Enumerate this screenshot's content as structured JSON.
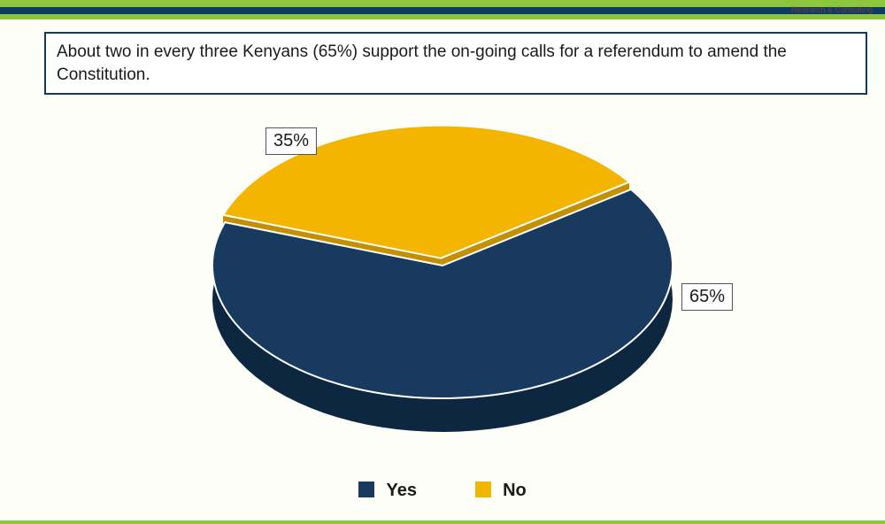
{
  "header": {
    "watermark": "Research & Consulting"
  },
  "title": "About two in every three Kenyans (65%) support the on-going calls for a referendum to amend the Constitution.",
  "chart": {
    "type": "pie",
    "is_3d": true,
    "exploded_slice_index": 1,
    "slices": [
      {
        "label": "Yes",
        "value": 65,
        "pct_text": "65%",
        "color": "#173a5e",
        "side_color": "#0e2740"
      },
      {
        "label": "No",
        "value": 35,
        "pct_text": "35%",
        "color": "#f4b500",
        "side_color": "#c48f00"
      }
    ],
    "background_color": "#fdfef8",
    "label_bg": "#ffffff",
    "label_border": "#555555",
    "label_fontsize": 20,
    "legend_fontsize": 20,
    "start_angle_deg": -35
  },
  "legend": {
    "items": [
      {
        "label": "Yes",
        "color": "#173a5e"
      },
      {
        "label": "No",
        "color": "#f4b500"
      }
    ]
  }
}
